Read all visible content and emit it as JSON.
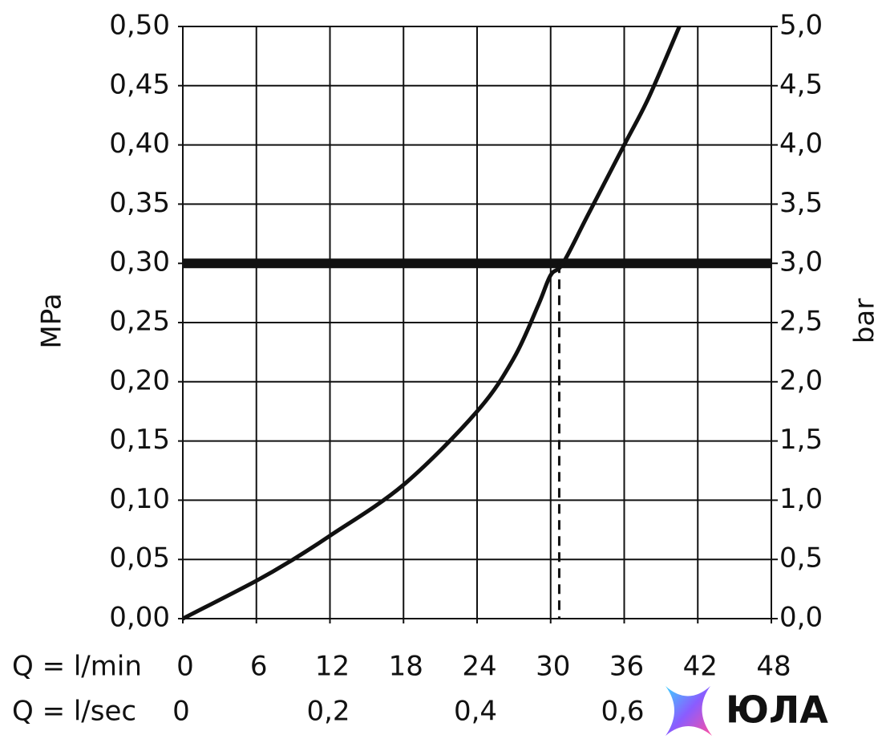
{
  "chart_data": {
    "type": "line",
    "x": [
      0,
      6,
      9,
      12,
      18,
      24,
      27,
      29,
      30,
      31,
      33,
      36,
      38,
      40.5
    ],
    "values": [
      0,
      0.032,
      0.05,
      0.07,
      0.113,
      0.175,
      0.22,
      0.265,
      0.29,
      0.3,
      0.34,
      0.4,
      0.44,
      0.5
    ],
    "color": "#111111",
    "xlim": [
      0,
      48
    ],
    "xticks": [
      0,
      6,
      12,
      18,
      24,
      30,
      36,
      42,
      48
    ],
    "x_label": "Q = l/min",
    "x2lim": [
      0,
      0.8
    ],
    "x2ticks": [
      0,
      {
        "value": 0.2,
        "label": "0,2"
      },
      {
        "value": 0.4,
        "label": "0,4"
      },
      {
        "value": 0.6,
        "label": "0,6"
      }
    ],
    "x2_label": "Q = l/sec",
    "ylim": [
      0,
      0.5
    ],
    "yticks": [
      {
        "value": 0,
        "label": "0,00"
      },
      {
        "value": 0.05,
        "label": "0,05"
      },
      {
        "value": 0.1,
        "label": "0,10"
      },
      {
        "value": 0.15,
        "label": "0,15"
      },
      {
        "value": 0.2,
        "label": "0,20"
      },
      {
        "value": 0.25,
        "label": "0,25"
      },
      {
        "value": 0.3,
        "label": "0,30"
      },
      {
        "value": 0.35,
        "label": "0,35"
      },
      {
        "value": 0.4,
        "label": "0,40"
      },
      {
        "value": 0.45,
        "label": "0,45"
      },
      {
        "value": 0.5,
        "label": "0,50"
      }
    ],
    "y_label": "MPa",
    "y2lim": [
      0,
      5
    ],
    "y2ticks": [
      {
        "value": 0,
        "label": "0,0"
      },
      {
        "value": 0.5,
        "label": "0,5"
      },
      {
        "value": 1,
        "label": "1,0"
      },
      {
        "value": 1.5,
        "label": "1,5"
      },
      {
        "value": 2,
        "label": "2,0"
      },
      {
        "value": 2.5,
        "label": "2,5"
      },
      {
        "value": 3,
        "label": "3,0"
      },
      {
        "value": 3.5,
        "label": "3,5"
      },
      {
        "value": 4,
        "label": "4,0"
      },
      {
        "value": 4.5,
        "label": "4,5"
      },
      {
        "value": 5,
        "label": "5,0"
      }
    ],
    "y2_label": "bar",
    "threshold": 0.3,
    "marker_x": 30.7,
    "grid": true
  },
  "watermark": "ЮЛА"
}
